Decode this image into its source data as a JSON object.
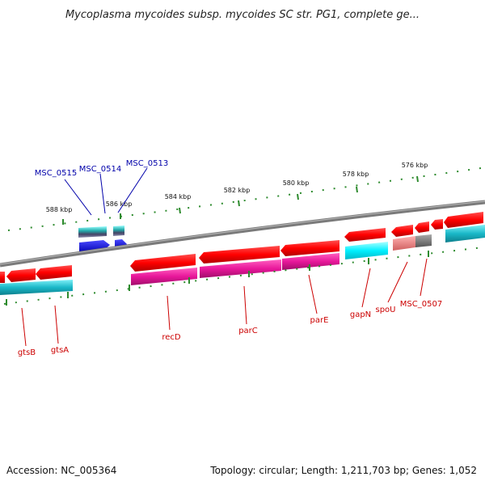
{
  "title": "Mycoplasma mycoides subsp. mycoides SC str. PG1, complete ge...",
  "footer": {
    "accession": "Accession: NC_005364",
    "stats": "Topology: circular; Length: 1,211,703 bp; Genes: 1,052"
  },
  "colors": {
    "forward_gene": "#ff0000",
    "reverse_gene": "#ff0000",
    "cds_forward": "#e8179a",
    "cds_reverse": "#1ab8c8",
    "rna": "#0000ee",
    "backbone": "#808080",
    "tick": "#2e8b2e",
    "label_blue": "#0000aa",
    "label_red": "#cc0000"
  },
  "ticks": [
    {
      "label": "576 kbp"
    },
    {
      "label": "578 kbp"
    },
    {
      "label": "580 kbp"
    },
    {
      "label": "582 kbp"
    },
    {
      "label": "584 kbp"
    },
    {
      "label": "586 kbp"
    },
    {
      "label": "588 kbp"
    }
  ],
  "genes_top": [
    {
      "name": "MSC_0515",
      "icon": "blue-label"
    },
    {
      "name": "MSC_0514",
      "icon": "blue-label"
    },
    {
      "name": "MSC_0513",
      "icon": "blue-label"
    }
  ],
  "genes_bottom": [
    {
      "name": "gtsB"
    },
    {
      "name": "gtsA"
    },
    {
      "name": "recD"
    },
    {
      "name": "parC"
    },
    {
      "name": "parE"
    },
    {
      "name": "gapN"
    },
    {
      "name": "spoU"
    },
    {
      "name": "MSC_0507"
    }
  ]
}
